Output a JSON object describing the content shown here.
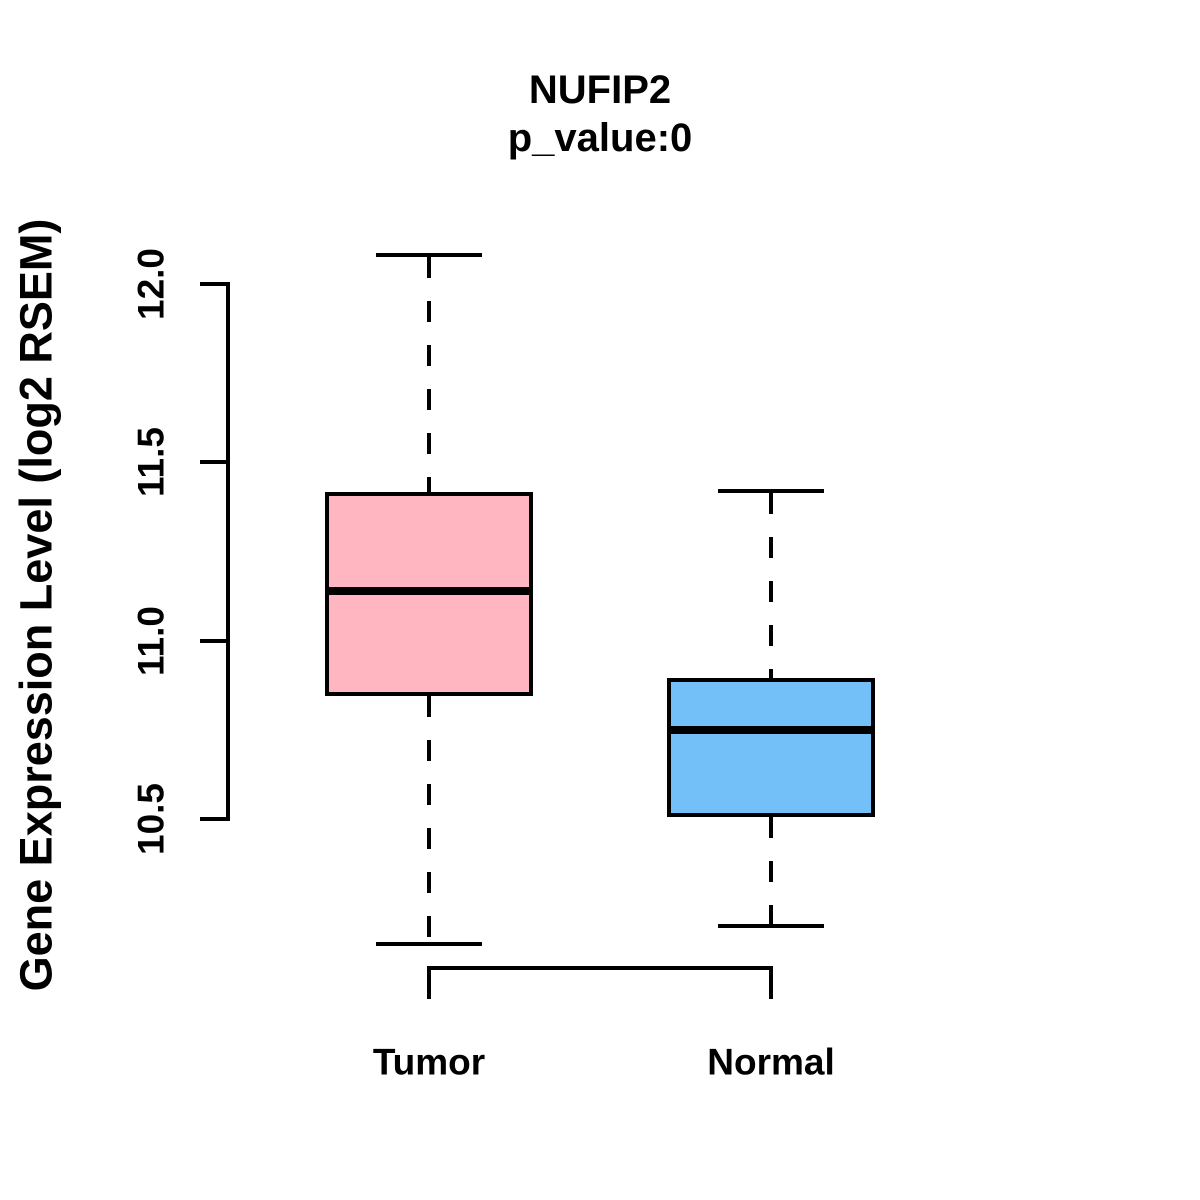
{
  "chart_data": {
    "type": "boxplot",
    "title": "NUFIP2",
    "subtitle": "p_value:0",
    "ylabel": "Gene Expression Level (log2 RSEM)",
    "xlabel": "",
    "categories": [
      "Tumor",
      "Normal"
    ],
    "yticks": [
      10.5,
      11.0,
      11.5,
      12.0
    ],
    "ylim": [
      10.1,
      12.1
    ],
    "grid": false,
    "legend": "none",
    "orientation": "vertical",
    "series": [
      {
        "name": "Tumor",
        "min": 10.15,
        "q1": 10.85,
        "median": 11.14,
        "q3": 11.41,
        "max": 12.08,
        "fill": "#FFB6C1"
      },
      {
        "name": "Normal",
        "min": 10.2,
        "q1": 10.51,
        "median": 10.75,
        "q3": 10.89,
        "max": 11.42,
        "fill": "#73BFF7"
      }
    ],
    "colors": {
      "line": "#000000",
      "tumor_fill": "#FFB6C1",
      "normal_fill": "#73BFF7",
      "background": "#FFFFFF"
    }
  }
}
